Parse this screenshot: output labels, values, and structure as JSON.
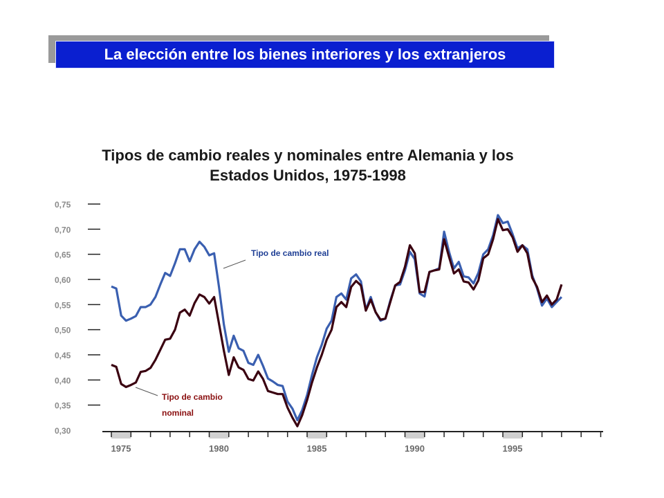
{
  "slide": {
    "banner_title": "La elección entre los bienes interiores y los extranjeros"
  },
  "colors": {
    "banner_bg": "#0a1fd0",
    "real": "#3a5fb0",
    "nominal": "#3a0010",
    "recession_band": "#d0d0d0"
  },
  "chart_data": {
    "type": "line",
    "title": "Tipos de cambio reales y nominales entre Alemania y los Estados Unidos, 1975-1998",
    "xlabel": "",
    "ylabel": "",
    "xlim": [
      1975,
      2000
    ],
    "ylim": [
      0.3,
      0.75
    ],
    "y_ticks": [
      "0,75",
      "0,70",
      "0,65",
      "0,60",
      "0,55",
      "0,50",
      "0,45",
      "0,40",
      "0,35",
      "0,30"
    ],
    "x_ticks": [
      "1975",
      "1980",
      "1985",
      "1990",
      "1995"
    ],
    "shaded_years": [
      1975,
      1980,
      1985,
      1990,
      1995
    ],
    "grid": false,
    "series": [
      {
        "name": "Tipo de cambio real",
        "label_lines": [
          "Tipo de cambio real"
        ],
        "color": "#3a5fb0",
        "x": [
          1975.0,
          1975.25,
          1975.5,
          1975.75,
          1976.0,
          1976.25,
          1976.5,
          1976.75,
          1977.0,
          1977.25,
          1977.5,
          1977.75,
          1978.0,
          1978.25,
          1978.5,
          1978.75,
          1979.0,
          1979.25,
          1979.5,
          1979.75,
          1980.0,
          1980.25,
          1980.5,
          1980.75,
          1981.0,
          1981.25,
          1981.5,
          1981.75,
          1982.0,
          1982.25,
          1982.5,
          1982.75,
          1983.0,
          1983.25,
          1983.5,
          1983.75,
          1984.0,
          1984.25,
          1984.5,
          1984.75,
          1985.0,
          1985.25,
          1985.5,
          1985.75,
          1986.0,
          1986.25,
          1986.5,
          1986.75,
          1987.0,
          1987.25,
          1987.5,
          1987.75,
          1988.0,
          1988.25,
          1988.5,
          1988.75,
          1989.0,
          1989.25,
          1989.5,
          1989.75,
          1990.0,
          1990.25,
          1990.5,
          1990.75,
          1991.0,
          1991.25,
          1991.5,
          1991.75,
          1992.0,
          1992.25,
          1992.5,
          1992.75,
          1993.0,
          1993.25,
          1993.5,
          1993.75,
          1994.0,
          1994.25,
          1994.5,
          1994.75,
          1995.0,
          1995.25,
          1995.5,
          1995.75,
          1996.0,
          1996.25,
          1996.5,
          1996.75,
          1997.0,
          1997.25,
          1997.5,
          1997.75,
          1998.0
        ],
        "values": [
          0.586,
          0.582,
          0.528,
          0.518,
          0.522,
          0.527,
          0.545,
          0.545,
          0.55,
          0.565,
          0.59,
          0.613,
          0.607,
          0.632,
          0.66,
          0.66,
          0.636,
          0.66,
          0.675,
          0.665,
          0.648,
          0.652,
          0.585,
          0.51,
          0.456,
          0.488,
          0.463,
          0.458,
          0.434,
          0.43,
          0.45,
          0.428,
          0.403,
          0.397,
          0.39,
          0.388,
          0.357,
          0.343,
          0.32,
          0.34,
          0.37,
          0.41,
          0.445,
          0.47,
          0.502,
          0.518,
          0.565,
          0.572,
          0.56,
          0.602,
          0.61,
          0.596,
          0.54,
          0.565,
          0.535,
          0.518,
          0.522,
          0.558,
          0.588,
          0.59,
          0.618,
          0.655,
          0.64,
          0.572,
          0.566,
          0.615,
          0.618,
          0.622,
          0.695,
          0.655,
          0.622,
          0.635,
          0.606,
          0.604,
          0.592,
          0.613,
          0.65,
          0.66,
          0.688,
          0.728,
          0.712,
          0.715,
          0.69,
          0.662,
          0.668,
          0.66,
          0.608,
          0.582,
          0.548,
          0.562,
          0.545,
          0.555,
          0.565
        ]
      },
      {
        "name": "Tipo de cambio nominal",
        "label_lines": [
          "Tipo de cambio",
          "nominal"
        ],
        "color": "#3a0010",
        "x": [
          1975.0,
          1975.25,
          1975.5,
          1975.75,
          1976.0,
          1976.25,
          1976.5,
          1976.75,
          1977.0,
          1977.25,
          1977.5,
          1977.75,
          1978.0,
          1978.25,
          1978.5,
          1978.75,
          1979.0,
          1979.25,
          1979.5,
          1979.75,
          1980.0,
          1980.25,
          1980.5,
          1980.75,
          1981.0,
          1981.25,
          1981.5,
          1981.75,
          1982.0,
          1982.25,
          1982.5,
          1982.75,
          1983.0,
          1983.25,
          1983.5,
          1983.75,
          1984.0,
          1984.25,
          1984.5,
          1984.75,
          1985.0,
          1985.25,
          1985.5,
          1985.75,
          1986.0,
          1986.25,
          1986.5,
          1986.75,
          1987.0,
          1987.25,
          1987.5,
          1987.75,
          1988.0,
          1988.25,
          1988.5,
          1988.75,
          1989.0,
          1989.25,
          1989.5,
          1989.75,
          1990.0,
          1990.25,
          1990.5,
          1990.75,
          1991.0,
          1991.25,
          1991.5,
          1991.75,
          1992.0,
          1992.25,
          1992.5,
          1992.75,
          1993.0,
          1993.25,
          1993.5,
          1993.75,
          1994.0,
          1994.25,
          1994.5,
          1994.75,
          1995.0,
          1995.25,
          1995.5,
          1995.75,
          1996.0,
          1996.25,
          1996.5,
          1996.75,
          1997.0,
          1997.25,
          1997.5,
          1997.75,
          1998.0
        ],
        "values": [
          0.43,
          0.426,
          0.392,
          0.386,
          0.39,
          0.395,
          0.416,
          0.418,
          0.424,
          0.44,
          0.46,
          0.48,
          0.482,
          0.5,
          0.534,
          0.54,
          0.528,
          0.553,
          0.57,
          0.565,
          0.552,
          0.565,
          0.512,
          0.458,
          0.41,
          0.445,
          0.425,
          0.42,
          0.402,
          0.399,
          0.417,
          0.402,
          0.378,
          0.375,
          0.372,
          0.372,
          0.345,
          0.325,
          0.308,
          0.33,
          0.36,
          0.395,
          0.425,
          0.45,
          0.48,
          0.5,
          0.545,
          0.555,
          0.545,
          0.585,
          0.597,
          0.588,
          0.538,
          0.56,
          0.535,
          0.52,
          0.522,
          0.555,
          0.588,
          0.595,
          0.625,
          0.668,
          0.652,
          0.575,
          0.575,
          0.615,
          0.618,
          0.62,
          0.68,
          0.645,
          0.612,
          0.62,
          0.596,
          0.594,
          0.58,
          0.598,
          0.642,
          0.65,
          0.68,
          0.72,
          0.698,
          0.7,
          0.684,
          0.655,
          0.668,
          0.652,
          0.603,
          0.585,
          0.555,
          0.568,
          0.55,
          0.56,
          0.59
        ]
      }
    ]
  }
}
